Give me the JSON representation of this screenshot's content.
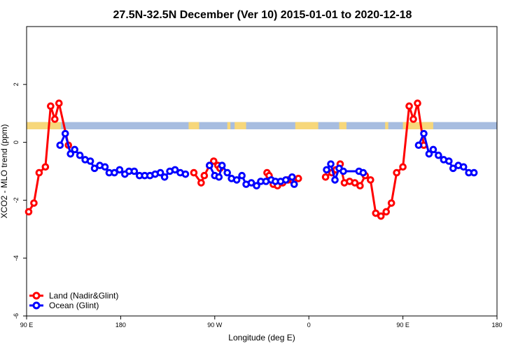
{
  "chart_data": {
    "type": "line",
    "title": "27.5N-32.5N December (Ver 10)   2015-01-01 to 2020-12-18",
    "xlabel": "Longitude (deg E)",
    "ylabel": "XCO2 - MLO trend (ppm)",
    "xlim": [
      90,
      540
    ],
    "ylim": [
      -6,
      4
    ],
    "x_ticks": [
      {
        "value": 90,
        "label": "90 E"
      },
      {
        "value": 180,
        "label": "180"
      },
      {
        "value": 270,
        "label": "90 W"
      },
      {
        "value": 360,
        "label": "0"
      },
      {
        "value": 450,
        "label": "90 E"
      },
      {
        "value": 540,
        "label": "180"
      }
    ],
    "y_ticks": [
      {
        "value": 2,
        "label": "2"
      },
      {
        "value": 0,
        "label": "0"
      },
      {
        "value": -2,
        "label": "-2"
      },
      {
        "value": -4,
        "label": "-4"
      },
      {
        "value": -6,
        "label": "-6"
      }
    ],
    "colors": {
      "land": "#ff0000",
      "ocean": "#0000ff",
      "band_land": "#f7d77a",
      "band_ocean": "#a7bde0"
    },
    "land_band": {
      "y_range": [
        0.45,
        0.7
      ],
      "land_segments": [
        [
          90,
          123
        ],
        [
          245,
          255
        ],
        [
          282,
          285
        ],
        [
          289,
          300
        ],
        [
          347,
          369
        ],
        [
          389,
          396
        ],
        [
          433,
          436
        ],
        [
          450,
          479
        ]
      ]
    },
    "legend": {
      "position": "bottom-left"
    },
    "series": [
      {
        "name": "Land (Nadir&Glint)",
        "color": "#ff0000",
        "points": [
          [
            92,
            -2.4
          ],
          [
            97,
            -2.1
          ],
          [
            102,
            -1.05
          ],
          [
            108,
            -0.85
          ],
          [
            113,
            1.25
          ],
          [
            117,
            0.8
          ],
          [
            121,
            1.35
          ],
          [
            130,
            -0.1
          ],
          [
            250,
            -1.05
          ],
          [
            257,
            -1.4
          ],
          [
            260,
            -1.15
          ],
          [
            265,
            -0.8
          ],
          [
            269,
            -0.65
          ],
          [
            273,
            -0.8
          ],
          [
            275,
            -0.9
          ],
          [
            320,
            -1.05
          ],
          [
            322,
            -1.15
          ],
          [
            326,
            -1.45
          ],
          [
            330,
            -1.5
          ],
          [
            335,
            -1.4
          ],
          [
            340,
            -1.3
          ],
          [
            345,
            -1.35
          ],
          [
            350,
            -1.25
          ],
          [
            376,
            -1.2
          ],
          [
            382,
            -1.05
          ],
          [
            386,
            -0.95
          ],
          [
            390,
            -0.75
          ],
          [
            394,
            -1.4
          ],
          [
            399,
            -1.35
          ],
          [
            404,
            -1.4
          ],
          [
            409,
            -1.5
          ],
          [
            414,
            -1.15
          ],
          [
            419,
            -1.3
          ],
          [
            424,
            -2.45
          ],
          [
            429,
            -2.55
          ],
          [
            434,
            -2.4
          ],
          [
            439,
            -2.1
          ],
          [
            444,
            -1.05
          ],
          [
            450,
            -0.85
          ],
          [
            456,
            1.25
          ],
          [
            460,
            0.8
          ],
          [
            464,
            1.35
          ],
          [
            470,
            -0.1
          ]
        ]
      },
      {
        "name": "Ocean (Glint)",
        "color": "#0000ff",
        "points": [
          [
            122,
            -0.1
          ],
          [
            127,
            0.3
          ],
          [
            132,
            -0.4
          ],
          [
            136,
            -0.25
          ],
          [
            141,
            -0.45
          ],
          [
            146,
            -0.6
          ],
          [
            151,
            -0.65
          ],
          [
            155,
            -0.9
          ],
          [
            160,
            -0.8
          ],
          [
            165,
            -0.85
          ],
          [
            169,
            -1.05
          ],
          [
            174,
            -1.05
          ],
          [
            179,
            -0.95
          ],
          [
            184,
            -1.1
          ],
          [
            188,
            -1.0
          ],
          [
            193,
            -1.0
          ],
          [
            198,
            -1.15
          ],
          [
            203,
            -1.15
          ],
          [
            208,
            -1.15
          ],
          [
            213,
            -1.1
          ],
          [
            218,
            -1.05
          ],
          [
            222,
            -1.2
          ],
          [
            227,
            -1.0
          ],
          [
            232,
            -0.95
          ],
          [
            237,
            -1.05
          ],
          [
            242,
            -1.1
          ],
          [
            265,
            -0.8
          ],
          [
            270,
            -1.15
          ],
          [
            274,
            -1.2
          ],
          [
            277,
            -0.8
          ],
          [
            282,
            -1.05
          ],
          [
            286,
            -1.25
          ],
          [
            291,
            -1.3
          ],
          [
            296,
            -1.15
          ],
          [
            300,
            -1.45
          ],
          [
            305,
            -1.4
          ],
          [
            310,
            -1.5
          ],
          [
            314,
            -1.35
          ],
          [
            319,
            -1.35
          ],
          [
            324,
            -1.3
          ],
          [
            328,
            -1.35
          ],
          [
            333,
            -1.35
          ],
          [
            338,
            -1.3
          ],
          [
            344,
            -1.2
          ],
          [
            346,
            -1.45
          ],
          [
            377,
            -0.95
          ],
          [
            381,
            -0.75
          ],
          [
            385,
            -1.3
          ],
          [
            389,
            -0.9
          ],
          [
            393,
            -1.0
          ],
          [
            408,
            -1.0
          ],
          [
            412,
            -1.05
          ],
          [
            465,
            -0.1
          ],
          [
            470,
            0.3
          ],
          [
            475,
            -0.4
          ],
          [
            479,
            -0.25
          ],
          [
            484,
            -0.45
          ],
          [
            489,
            -0.6
          ],
          [
            494,
            -0.65
          ],
          [
            498,
            -0.9
          ],
          [
            503,
            -0.8
          ],
          [
            508,
            -0.85
          ],
          [
            513,
            -1.05
          ],
          [
            518,
            -1.05
          ]
        ]
      }
    ]
  }
}
